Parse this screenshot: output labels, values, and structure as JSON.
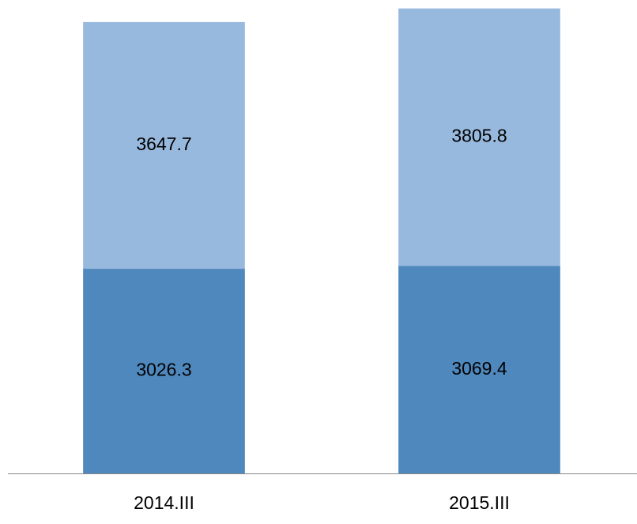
{
  "chart_data": {
    "type": "stacked_bar",
    "categories": [
      "2014.III",
      "2015.III"
    ],
    "series": [
      {
        "color": "#4f88bd",
        "values": [
          3026.3,
          3069.4
        ]
      },
      {
        "color": "#98b9de",
        "values": [
          3647.7,
          3805.8
        ]
      }
    ],
    "ylim": [
      0,
      7000
    ]
  }
}
